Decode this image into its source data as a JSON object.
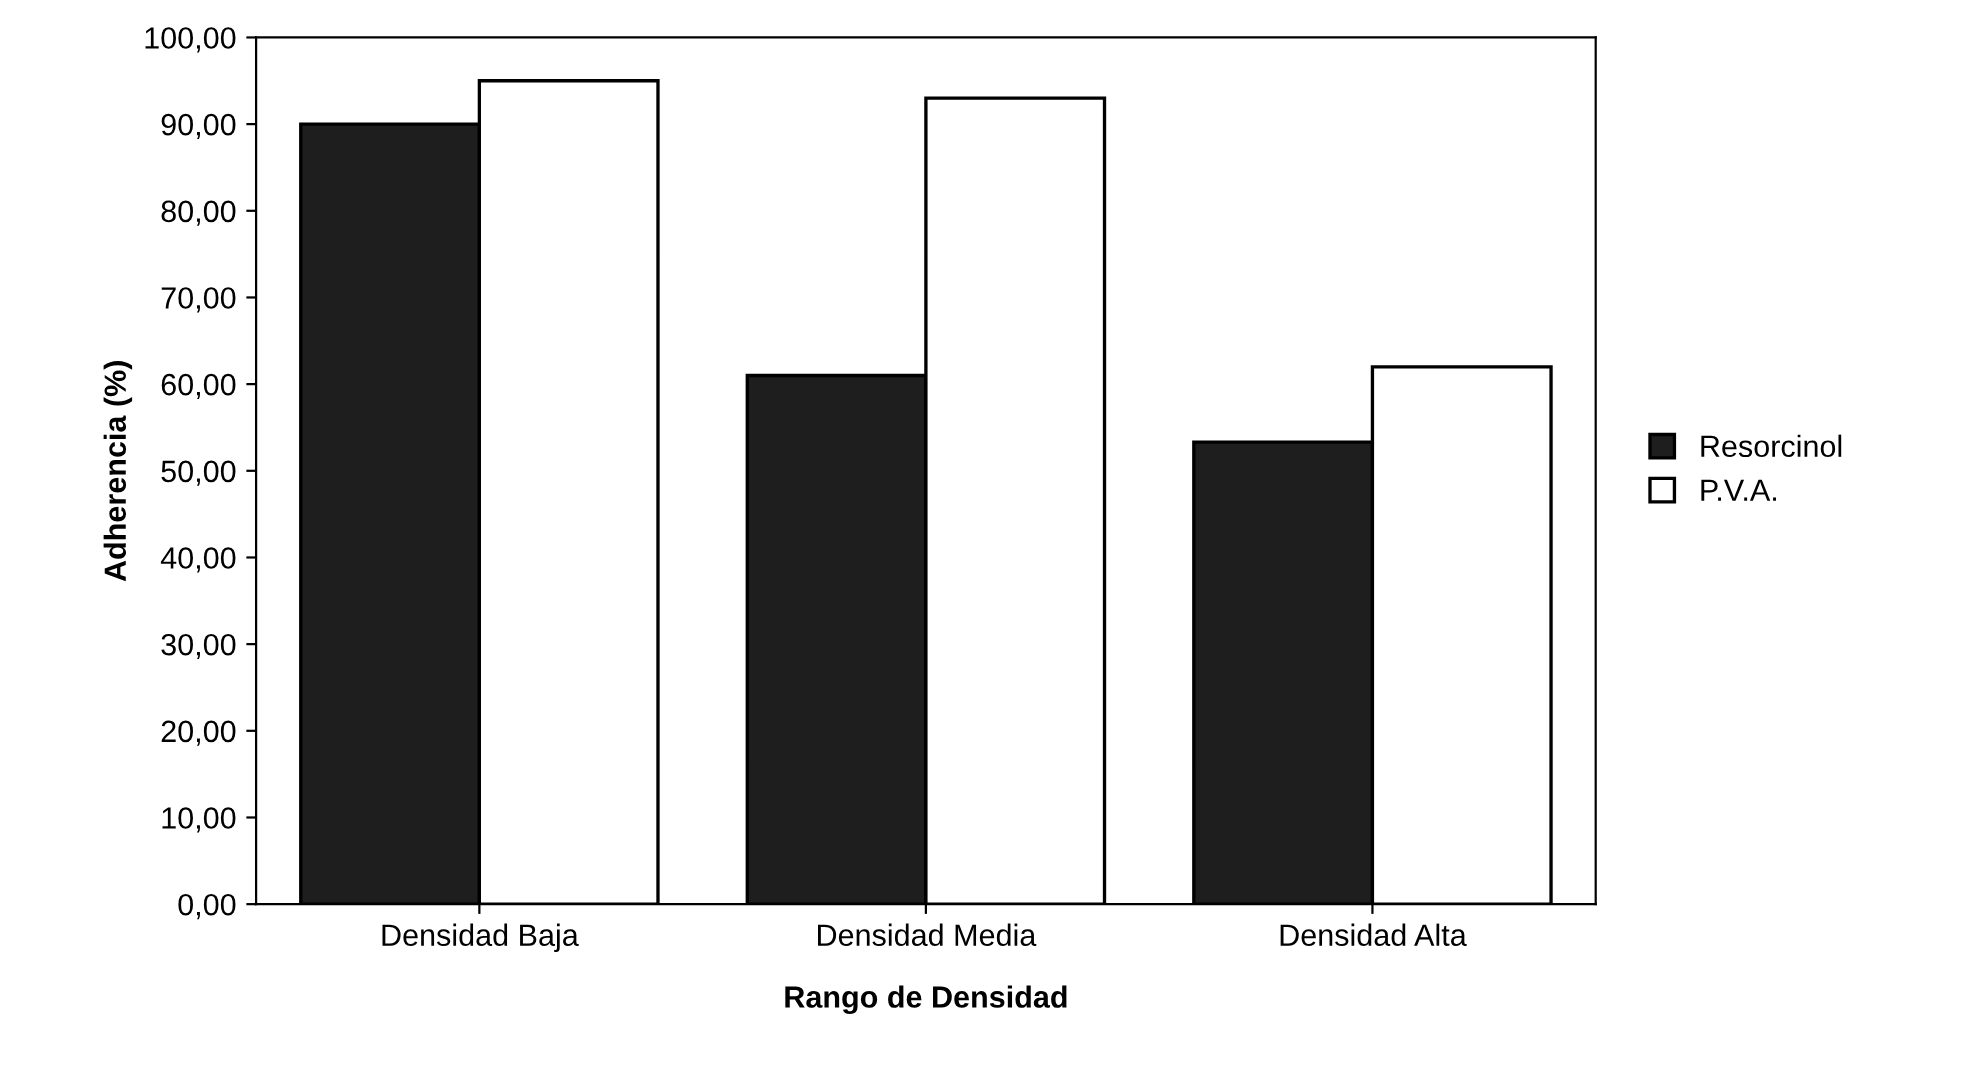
{
  "chart_data": {
    "type": "bar",
    "xlabel": "Rango de Densidad",
    "ylabel": "Adherencia (%)",
    "categories": [
      "Densidad Baja",
      "Densidad Media",
      "Densidad Alta"
    ],
    "series": [
      {
        "name": "Resorcinol",
        "color": "#1e1e1e",
        "values": [
          90,
          61,
          53.3
        ]
      },
      {
        "name": "P.V.A.",
        "color": "#ffffff",
        "values": [
          95,
          93,
          62
        ]
      }
    ],
    "ylim": [
      0,
      100
    ],
    "yticks": [
      {
        "value": 0,
        "label": "0,00"
      },
      {
        "value": 10,
        "label": "10,00"
      },
      {
        "value": 20,
        "label": "20,00"
      },
      {
        "value": 30,
        "label": "30,00"
      },
      {
        "value": 40,
        "label": "40,00"
      },
      {
        "value": 50,
        "label": "50,00"
      },
      {
        "value": 60,
        "label": "60,00"
      },
      {
        "value": 70,
        "label": "70,00"
      },
      {
        "value": 80,
        "label": "80,00"
      },
      {
        "value": 90,
        "label": "90,00"
      },
      {
        "value": 100,
        "label": "100,00"
      }
    ],
    "grid": false,
    "legend": "right"
  }
}
